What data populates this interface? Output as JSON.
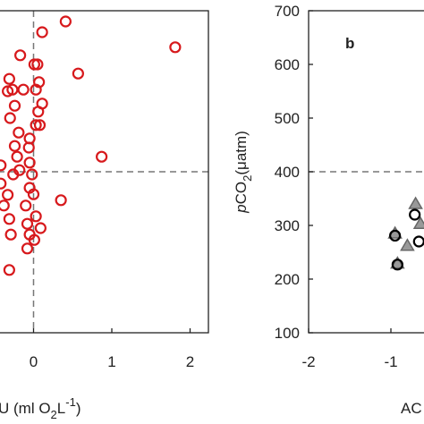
{
  "chart_data": [
    {
      "type": "scatter",
      "xlabel": [
        "U (ml O",
        "2",
        "L",
        "-1",
        ")"
      ],
      "xlim": [
        -1,
        2.24
      ],
      "ylim": [
        100,
        700
      ],
      "xticks": [
        0,
        1,
        2
      ],
      "ref_lines": {
        "x": 0,
        "y": 400
      },
      "series": [
        {
          "marker": "circle",
          "color": "#d7191c",
          "x": [
            0.41,
            0.11,
            -0.17,
            0.05,
            0.01,
            0.57,
            1.81,
            -0.31,
            -0.33,
            -0.27,
            -0.13,
            0.07,
            0.03,
            -0.24,
            0.11,
            0.06,
            -0.3,
            0.08,
            0.03,
            -0.19,
            -0.05,
            -0.24,
            -0.06,
            -0.21,
            0.87,
            -0.42,
            -0.05,
            -0.18,
            -0.02,
            -0.26,
            -0.42,
            -0.05,
            -0.33,
            0.0,
            0.35,
            -0.38,
            -0.1,
            0.03,
            -0.31,
            -0.08,
            0.09,
            -0.29,
            -0.05,
            0.01,
            -0.08,
            -0.31
          ],
          "values": [
            680,
            660,
            617,
            600,
            600,
            583,
            632,
            573,
            550,
            553,
            553,
            567,
            553,
            523,
            527,
            512,
            500,
            487,
            487,
            473,
            462,
            448,
            445,
            428,
            428,
            412,
            417,
            403,
            395,
            395,
            378,
            370,
            357,
            358,
            347,
            337,
            337,
            317,
            312,
            303,
            295,
            283,
            283,
            273,
            257,
            217
          ]
        }
      ]
    },
    {
      "type": "scatter",
      "panel_label": "b",
      "xlabel": [
        "AC"
      ],
      "ylabel": [
        "p",
        "CO",
        "2",
        "(μatm)"
      ],
      "xlim": [
        -2,
        1.5
      ],
      "ylim": [
        100,
        700
      ],
      "xticks": [
        -2,
        -1
      ],
      "yticks": [
        100,
        200,
        300,
        400,
        500,
        600,
        700
      ],
      "ref_lines": {
        "y": 400
      },
      "series": [
        {
          "marker": "triangle",
          "color": "#999999",
          "x": [
            -0.7,
            -0.64,
            -0.95,
            -0.8,
            -0.92
          ],
          "values": [
            340,
            303,
            285,
            262,
            229
          ]
        },
        {
          "marker": "circle",
          "color": "#000000",
          "x": [
            -0.71,
            -0.66,
            -0.95,
            -0.92
          ],
          "values": [
            320,
            270,
            281,
            227
          ]
        }
      ]
    }
  ]
}
